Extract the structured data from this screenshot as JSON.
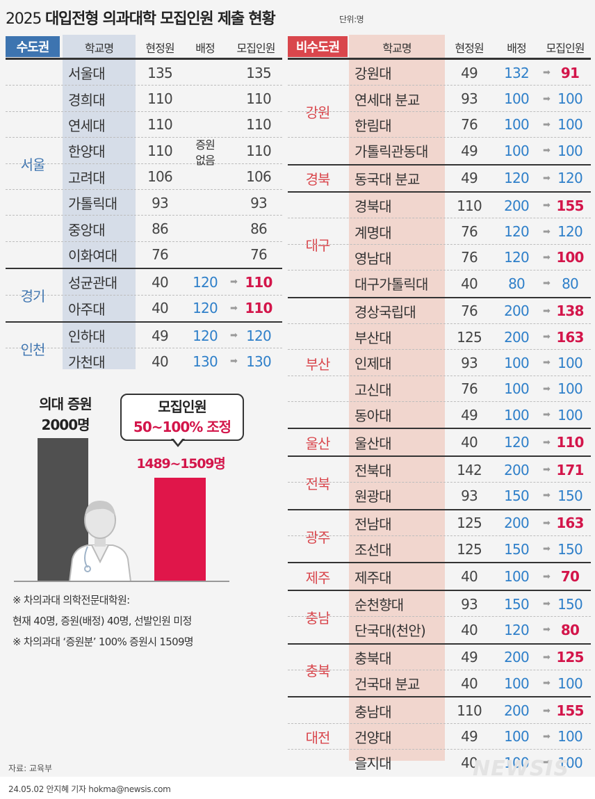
{
  "title": {
    "year": "2025",
    "text": "대입전형 의과대학 모집인원 제출 현황",
    "unit": "단위:명"
  },
  "capital": {
    "tag": "수도권",
    "headers": {
      "school": "학교명",
      "current": "현정원",
      "alloc": "배정",
      "recruit": "모집인원"
    },
    "no_increase": {
      "line1": "증원",
      "line2": "없음"
    },
    "groups": [
      {
        "region": "서울",
        "rows": [
          {
            "school": "서울대",
            "current": "135",
            "alloc": "",
            "recruit": "135",
            "style": "plain"
          },
          {
            "school": "경희대",
            "current": "110",
            "alloc": "",
            "recruit": "110",
            "style": "plain"
          },
          {
            "school": "연세대",
            "current": "110",
            "alloc": "",
            "recruit": "110",
            "style": "plain"
          },
          {
            "school": "한양대",
            "current": "110",
            "alloc": "",
            "recruit": "110",
            "style": "plain"
          },
          {
            "school": "고려대",
            "current": "106",
            "alloc": "",
            "recruit": "106",
            "style": "plain"
          },
          {
            "school": "가톨릭대",
            "current": "93",
            "alloc": "",
            "recruit": "93",
            "style": "plain"
          },
          {
            "school": "중앙대",
            "current": "86",
            "alloc": "",
            "recruit": "86",
            "style": "plain"
          },
          {
            "school": "이화여대",
            "current": "76",
            "alloc": "",
            "recruit": "76",
            "style": "plain"
          }
        ]
      },
      {
        "region": "경기",
        "rows": [
          {
            "school": "성균관대",
            "current": "40",
            "alloc": "120",
            "recruit": "110",
            "style": "red"
          },
          {
            "school": "아주대",
            "current": "40",
            "alloc": "120",
            "recruit": "110",
            "style": "red"
          }
        ]
      },
      {
        "region": "인천",
        "rows": [
          {
            "school": "인하대",
            "current": "49",
            "alloc": "120",
            "recruit": "120",
            "style": "blue"
          },
          {
            "school": "가천대",
            "current": "40",
            "alloc": "130",
            "recruit": "130",
            "style": "blue"
          }
        ]
      }
    ]
  },
  "non_capital": {
    "tag": "비수도권",
    "headers": {
      "school": "학교명",
      "current": "현정원",
      "alloc": "배정",
      "recruit": "모집인원"
    },
    "groups": [
      {
        "region": "강원",
        "rows": [
          {
            "school": "강원대",
            "current": "49",
            "alloc": "132",
            "recruit": "91",
            "style": "red"
          },
          {
            "school": "연세대 분교",
            "current": "93",
            "alloc": "100",
            "recruit": "100",
            "style": "blue"
          },
          {
            "school": "한림대",
            "current": "76",
            "alloc": "100",
            "recruit": "100",
            "style": "blue"
          },
          {
            "school": "가톨릭관동대",
            "current": "49",
            "alloc": "100",
            "recruit": "100",
            "style": "blue"
          }
        ]
      },
      {
        "region": "경북",
        "rows": [
          {
            "school": "동국대 분교",
            "current": "49",
            "alloc": "120",
            "recruit": "120",
            "style": "blue"
          }
        ]
      },
      {
        "region": "대구",
        "rows": [
          {
            "school": "경북대",
            "current": "110",
            "alloc": "200",
            "recruit": "155",
            "style": "red"
          },
          {
            "school": "계명대",
            "current": "76",
            "alloc": "120",
            "recruit": "120",
            "style": "blue"
          },
          {
            "school": "영남대",
            "current": "76",
            "alloc": "120",
            "recruit": "100",
            "style": "red"
          },
          {
            "school": "대구가톨릭대",
            "current": "40",
            "alloc": "80",
            "recruit": "80",
            "style": "blue"
          }
        ]
      },
      {
        "region": "부산",
        "rows": [
          {
            "school": "경상국립대",
            "current": "76",
            "alloc": "200",
            "recruit": "138",
            "style": "red"
          },
          {
            "school": "부산대",
            "current": "125",
            "alloc": "200",
            "recruit": "163",
            "style": "red"
          },
          {
            "school": "인제대",
            "current": "93",
            "alloc": "100",
            "recruit": "100",
            "style": "blue"
          },
          {
            "school": "고신대",
            "current": "76",
            "alloc": "100",
            "recruit": "100",
            "style": "blue"
          },
          {
            "school": "동아대",
            "current": "49",
            "alloc": "100",
            "recruit": "100",
            "style": "blue"
          }
        ]
      },
      {
        "region": "울산",
        "rows": [
          {
            "school": "울산대",
            "current": "40",
            "alloc": "120",
            "recruit": "110",
            "style": "red"
          }
        ]
      },
      {
        "region": "전북",
        "rows": [
          {
            "school": "전북대",
            "current": "142",
            "alloc": "200",
            "recruit": "171",
            "style": "red"
          },
          {
            "school": "원광대",
            "current": "93",
            "alloc": "150",
            "recruit": "150",
            "style": "blue"
          }
        ]
      },
      {
        "region": "광주",
        "rows": [
          {
            "school": "전남대",
            "current": "125",
            "alloc": "200",
            "recruit": "163",
            "style": "red"
          },
          {
            "school": "조선대",
            "current": "125",
            "alloc": "150",
            "recruit": "150",
            "style": "blue"
          }
        ]
      },
      {
        "region": "제주",
        "rows": [
          {
            "school": "제주대",
            "current": "40",
            "alloc": "100",
            "recruit": "70",
            "style": "red"
          }
        ]
      },
      {
        "region": "충남",
        "rows": [
          {
            "school": "순천향대",
            "current": "93",
            "alloc": "150",
            "recruit": "150",
            "style": "blue"
          },
          {
            "school": "단국대(천안)",
            "current": "40",
            "alloc": "120",
            "recruit": "80",
            "style": "red"
          }
        ]
      },
      {
        "region": "충북",
        "rows": [
          {
            "school": "충북대",
            "current": "49",
            "alloc": "200",
            "recruit": "125",
            "style": "red"
          },
          {
            "school": "건국대 분교",
            "current": "40",
            "alloc": "100",
            "recruit": "100",
            "style": "blue"
          }
        ]
      },
      {
        "region": "대전",
        "rows": [
          {
            "school": "충남대",
            "current": "110",
            "alloc": "200",
            "recruit": "155",
            "style": "red"
          },
          {
            "school": "건양대",
            "current": "49",
            "alloc": "100",
            "recruit": "100",
            "style": "blue"
          },
          {
            "school": "을지대",
            "current": "40",
            "alloc": "100",
            "recruit": "100",
            "style": "blue"
          }
        ]
      }
    ]
  },
  "arrow_glyph": "➡",
  "bars": {
    "increase_label_1": "의대 증원",
    "increase_label_2": "2000명",
    "increase_value": 2000,
    "callout_line1": "모집인원",
    "callout_line2": "50~100% 조정",
    "recruit_label": "1489~1509명",
    "recruit_value": 1509,
    "colors": {
      "gray": "#505050",
      "red": "#e0164a"
    }
  },
  "notes": [
    "※  차의과대 의학전문대학원:",
    "현재 40명, 증원(배정) 40명, 선발인원 미정",
    "※  차의과대 ‘증원분’ 100% 증원시 1509명"
  ],
  "source": "자료: 교육부",
  "credit": "24.05.02 안지혜 기자 hokma@newsis.com",
  "logo": "NEWSIS",
  "colors": {
    "capital_blue": "#3d74b0",
    "noncap_red": "#d9464c",
    "value_blue": "#2e7fc9",
    "value_red": "#d3154a"
  }
}
